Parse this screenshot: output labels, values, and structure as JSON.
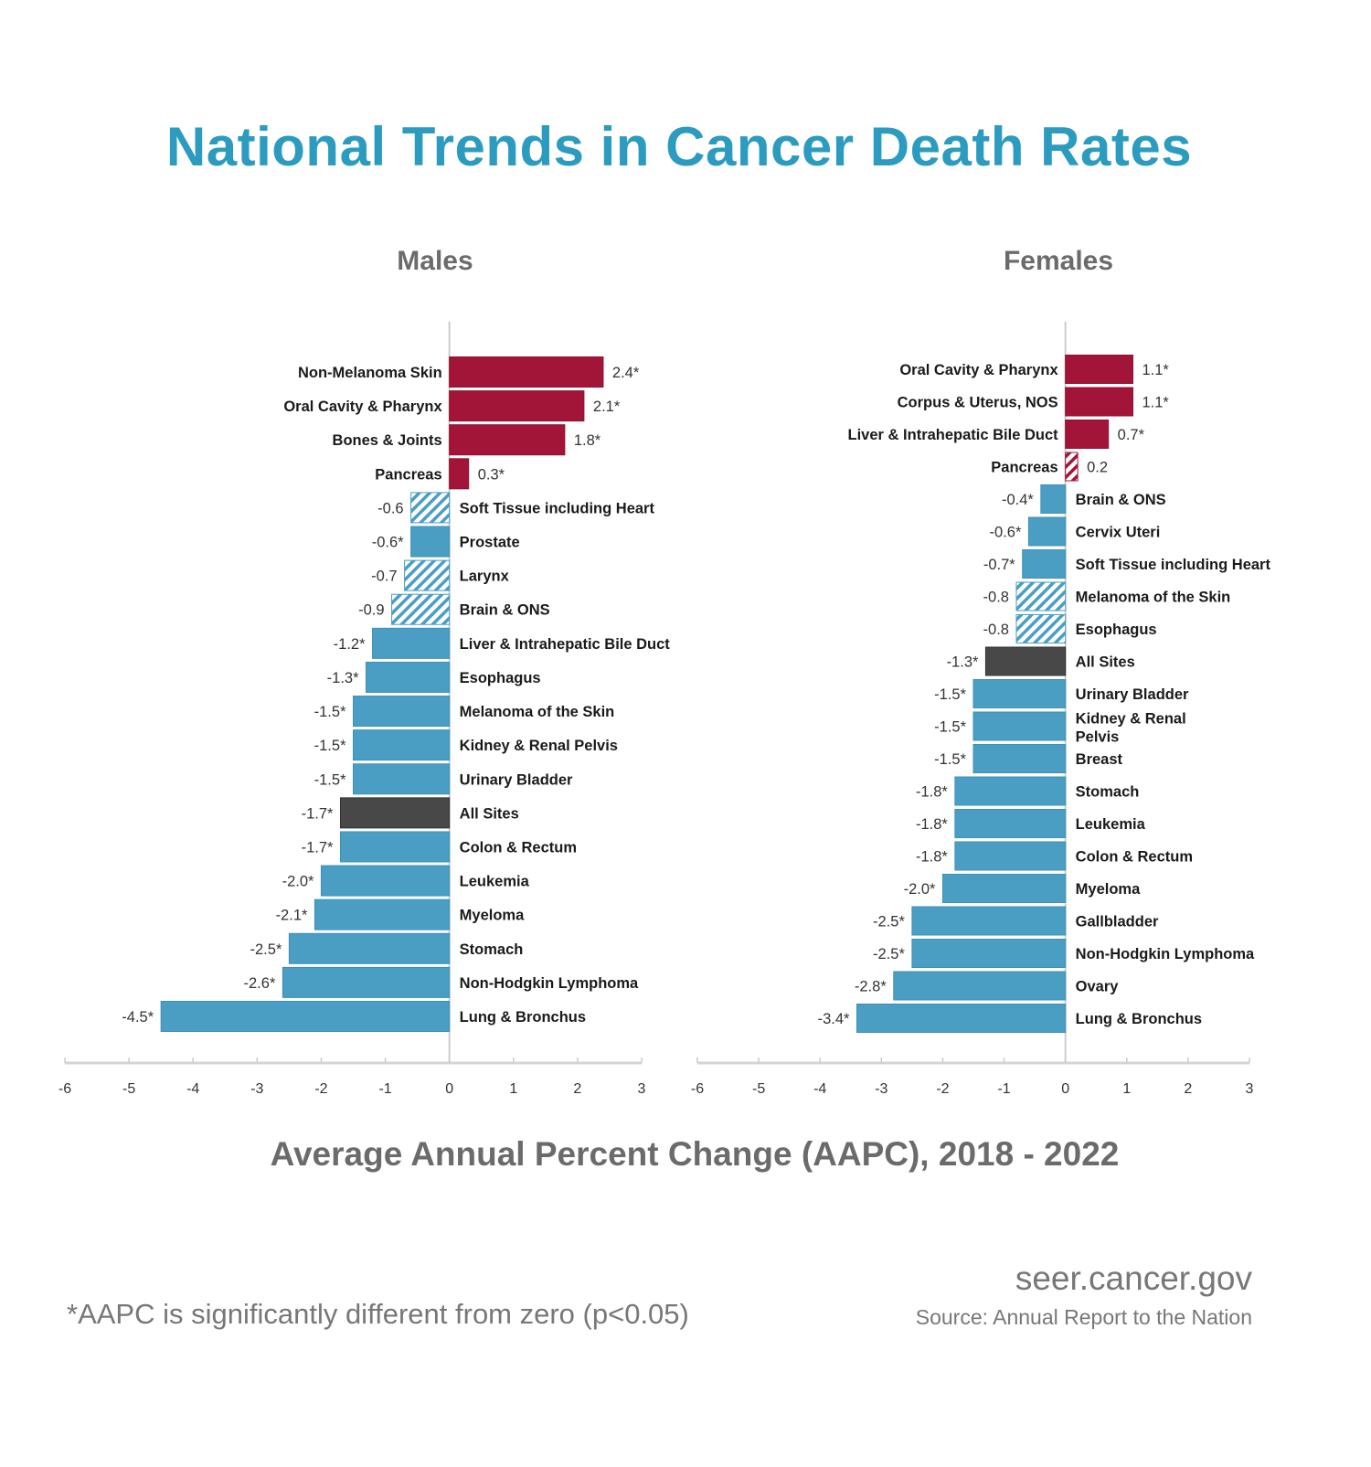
{
  "title": "National Trends in Cancer Death Rates",
  "colors": {
    "title": "#2b9cc0",
    "increase": "#a31538",
    "decrease": "#4a9ec4",
    "all_sites": "#484848",
    "axis_text": "#6b6b6b"
  },
  "chart_data": [
    {
      "type": "bar",
      "orientation": "horizontal",
      "title": "Males",
      "xlim": [
        -6,
        3
      ],
      "xticks": [
        "-6",
        "-5",
        "-4",
        "-3",
        "-2",
        "-1",
        "0",
        "1",
        "2",
        "3"
      ],
      "grid": false,
      "bars": [
        {
          "label": "Non-Melanoma Skin",
          "value": 2.4,
          "value_label": "2.4*",
          "significant": true
        },
        {
          "label": "Oral Cavity & Pharynx",
          "value": 2.1,
          "value_label": "2.1*",
          "significant": true
        },
        {
          "label": "Bones & Joints",
          "value": 1.8,
          "value_label": "1.8*",
          "significant": true
        },
        {
          "label": "Pancreas",
          "value": 0.3,
          "value_label": "0.3*",
          "significant": true
        },
        {
          "label": "Soft Tissue including Heart",
          "value": -0.6,
          "value_label": "-0.6",
          "significant": false
        },
        {
          "label": "Prostate",
          "value": -0.6,
          "value_label": "-0.6*",
          "significant": true
        },
        {
          "label": "Larynx",
          "value": -0.7,
          "value_label": "-0.7",
          "significant": false
        },
        {
          "label": "Brain & ONS",
          "value": -0.9,
          "value_label": "-0.9",
          "significant": false
        },
        {
          "label": "Liver & Intrahepatic Bile Duct",
          "value": -1.2,
          "value_label": "-1.2*",
          "significant": true
        },
        {
          "label": "Esophagus",
          "value": -1.3,
          "value_label": "-1.3*",
          "significant": true
        },
        {
          "label": "Melanoma of the Skin",
          "value": -1.5,
          "value_label": "-1.5*",
          "significant": true
        },
        {
          "label": "Kidney & Renal Pelvis",
          "value": -1.5,
          "value_label": "-1.5*",
          "significant": true
        },
        {
          "label": "Urinary Bladder",
          "value": -1.5,
          "value_label": "-1.5*",
          "significant": true
        },
        {
          "label": "All Sites",
          "value": -1.7,
          "value_label": "-1.7*",
          "significant": true,
          "highlight": true
        },
        {
          "label": "Colon & Rectum",
          "value": -1.7,
          "value_label": "-1.7*",
          "significant": true
        },
        {
          "label": "Leukemia",
          "value": -2.0,
          "value_label": "-2.0*",
          "significant": true
        },
        {
          "label": "Myeloma",
          "value": -2.1,
          "value_label": "-2.1*",
          "significant": true
        },
        {
          "label": "Stomach",
          "value": -2.5,
          "value_label": "-2.5*",
          "significant": true
        },
        {
          "label": "Non-Hodgkin Lymphoma",
          "value": -2.6,
          "value_label": "-2.6*",
          "significant": true
        },
        {
          "label": "Lung & Bronchus",
          "value": -4.5,
          "value_label": "-4.5*",
          "significant": true
        }
      ]
    },
    {
      "type": "bar",
      "orientation": "horizontal",
      "title": "Females",
      "xlim": [
        -6,
        3
      ],
      "xticks": [
        "-6",
        "-5",
        "-4",
        "-3",
        "-2",
        "-1",
        "0",
        "1",
        "2",
        "3"
      ],
      "grid": false,
      "bars": [
        {
          "label": "Oral Cavity & Pharynx",
          "value": 1.1,
          "value_label": "1.1*",
          "significant": true
        },
        {
          "label": "Corpus & Uterus, NOS",
          "value": 1.1,
          "value_label": "1.1*",
          "significant": true
        },
        {
          "label": "Liver & Intrahepatic Bile Duct",
          "value": 0.7,
          "value_label": "0.7*",
          "significant": true
        },
        {
          "label": "Pancreas",
          "value": 0.2,
          "value_label": "0.2",
          "significant": false
        },
        {
          "label": "Brain & ONS",
          "value": -0.4,
          "value_label": "-0.4*",
          "significant": true
        },
        {
          "label": "Cervix Uteri",
          "value": -0.6,
          "value_label": "-0.6*",
          "significant": true
        },
        {
          "label": "Soft Tissue including Heart",
          "value": -0.7,
          "value_label": "-0.7*",
          "significant": true
        },
        {
          "label": "Melanoma of the Skin",
          "value": -0.8,
          "value_label": "-0.8",
          "significant": false
        },
        {
          "label": "Esophagus",
          "value": -0.8,
          "value_label": "-0.8",
          "significant": false
        },
        {
          "label": "All Sites",
          "value": -1.3,
          "value_label": "-1.3*",
          "significant": true,
          "highlight": true
        },
        {
          "label": "Urinary Bladder",
          "value": -1.5,
          "value_label": "-1.5*",
          "significant": true
        },
        {
          "label": "Kidney & Renal Pelvis",
          "value": -1.5,
          "value_label": "-1.5*",
          "significant": true
        },
        {
          "label": "Breast",
          "value": -1.5,
          "value_label": "-1.5*",
          "significant": true
        },
        {
          "label": "Stomach",
          "value": -1.8,
          "value_label": "-1.8*",
          "significant": true
        },
        {
          "label": "Leukemia",
          "value": -1.8,
          "value_label": "-1.8*",
          "significant": true
        },
        {
          "label": "Colon & Rectum",
          "value": -1.8,
          "value_label": "-1.8*",
          "significant": true
        },
        {
          "label": "Myeloma",
          "value": -2.0,
          "value_label": "-2.0*",
          "significant": true
        },
        {
          "label": "Gallbladder",
          "value": -2.5,
          "value_label": "-2.5*",
          "significant": true
        },
        {
          "label": "Non-Hodgkin Lymphoma",
          "value": -2.5,
          "value_label": "-2.5*",
          "significant": true
        },
        {
          "label": "Ovary",
          "value": -2.8,
          "value_label": "-2.8*",
          "significant": true
        },
        {
          "label": "Lung & Bronchus",
          "value": -3.4,
          "value_label": "-3.4*",
          "significant": true
        }
      ]
    }
  ],
  "xlabel": "Average Annual Percent Change (AAPC), 2018 - 2022",
  "footnote": "*AAPC is significantly different from zero (p<0.05)",
  "website": "seer.cancer.gov",
  "source": "Source: Annual Report to the Nation"
}
